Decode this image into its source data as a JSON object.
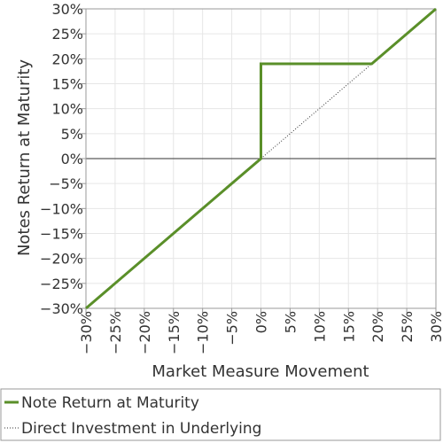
{
  "chart_data": {
    "type": "line",
    "xlabel": "Market Measure Movement",
    "ylabel": "Notes Return at Maturity",
    "xlim": [
      -30,
      30
    ],
    "ylim": [
      -30,
      30
    ],
    "x_ticks": [
      "−30%",
      "−25%",
      "−20%",
      "−15%",
      "−10%",
      "−5%",
      "0%",
      "5%",
      "10%",
      "15%",
      "20%",
      "25%",
      "30%"
    ],
    "y_ticks": [
      "30%",
      "25%",
      "20%",
      "15%",
      "10%",
      "5%",
      "0%",
      "−5%",
      "−10%",
      "−15%",
      "−20%",
      "−25%",
      "−30%"
    ],
    "x_tick_values": [
      -30,
      -25,
      -20,
      -15,
      -10,
      -5,
      0,
      5,
      10,
      15,
      20,
      25,
      30
    ],
    "y_tick_values": [
      30,
      25,
      20,
      15,
      10,
      5,
      0,
      -5,
      -10,
      -15,
      -20,
      -25,
      -30
    ],
    "grid": true,
    "legend_position": "bottom",
    "series": [
      {
        "name": "Note Return at Maturity",
        "color": "#5a8f29",
        "style": "solid",
        "x": [
          -30,
          0,
          0,
          19,
          30
        ],
        "y": [
          -30,
          0,
          19,
          19,
          30
        ]
      },
      {
        "name": "Direct Investment in Underlying",
        "color": "#333333",
        "style": "dotted",
        "x": [
          0,
          30
        ],
        "y": [
          0,
          30
        ]
      }
    ]
  }
}
